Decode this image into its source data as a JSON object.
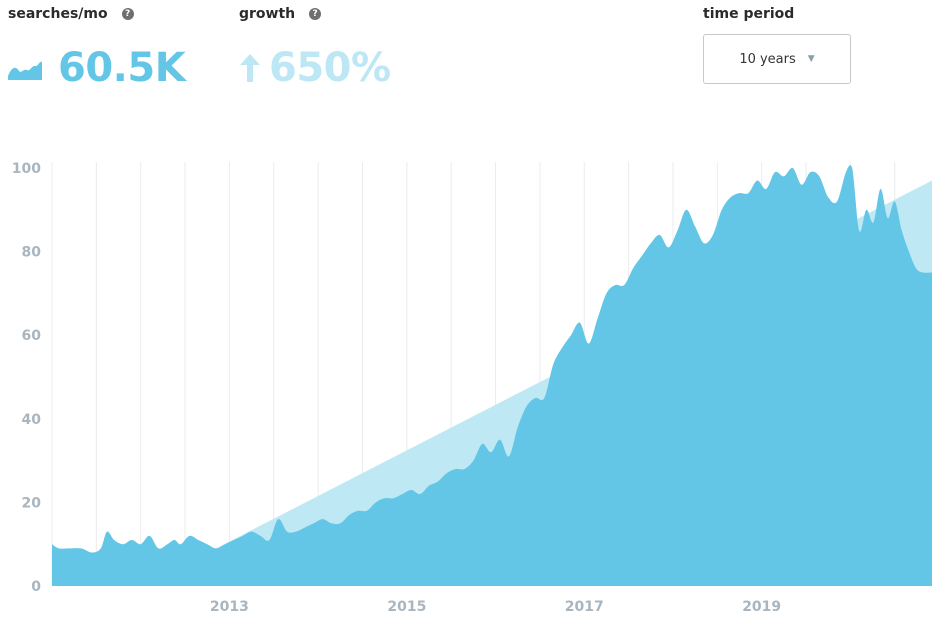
{
  "metrics": {
    "searches": {
      "label": "searches/mo",
      "value": "60.5K",
      "icon": "area-sparkline-icon",
      "color": "#63c6e6"
    },
    "growth": {
      "label": "growth",
      "value": "650%",
      "icon": "arrow-up-icon",
      "color": "#bde7f4"
    },
    "help_glyph": "?"
  },
  "time_period": {
    "label": "time period",
    "selected": "10 years",
    "caret": "▼"
  },
  "chart_data": {
    "type": "area",
    "x_start": 2011.0,
    "x_end": 2020.92,
    "ylim": [
      0,
      100
    ],
    "y_ticks": [
      "0",
      "20",
      "40",
      "60",
      "80",
      "100"
    ],
    "x_ticks": [
      {
        "label": "2013",
        "x": 2013.0
      },
      {
        "label": "2015",
        "x": 2015.0
      },
      {
        "label": "2017",
        "x": 2017.0
      },
      {
        "label": "2019",
        "x": 2019.0
      }
    ],
    "colors": {
      "volume": "#63c6e6",
      "trend": "#bfe8f5",
      "grid": "#ececec"
    },
    "trend": {
      "x": [
        2012.85,
        2020.92
      ],
      "y": [
        9,
        97
      ]
    },
    "series": [
      {
        "x": [
          2011.0,
          2011.08,
          2011.2,
          2011.33,
          2011.45,
          2011.55,
          2011.62,
          2011.7,
          2011.8,
          2011.9,
          2012.0,
          2012.1,
          2012.2,
          2012.3,
          2012.38,
          2012.45,
          2012.55,
          2012.65,
          2012.75,
          2012.85,
          2012.95,
          2013.05,
          2013.15,
          2013.25,
          2013.35,
          2013.45,
          2013.55,
          2013.65,
          2013.75,
          2013.85,
          2013.95,
          2014.05,
          2014.15,
          2014.25,
          2014.35,
          2014.45,
          2014.55,
          2014.65,
          2014.75,
          2014.85,
          2014.95,
          2015.05,
          2015.15,
          2015.25,
          2015.35,
          2015.45,
          2015.55,
          2015.65,
          2015.75,
          2015.85,
          2015.95,
          2016.05,
          2016.15,
          2016.25,
          2016.35,
          2016.45,
          2016.55,
          2016.65,
          2016.75,
          2016.85,
          2016.95,
          2017.05,
          2017.15,
          2017.25,
          2017.35,
          2017.45,
          2017.55,
          2017.65,
          2017.75,
          2017.85,
          2017.95,
          2018.05,
          2018.15,
          2018.25,
          2018.35,
          2018.45,
          2018.55,
          2018.65,
          2018.75,
          2018.85,
          2018.95,
          2019.05,
          2019.15,
          2019.25,
          2019.35,
          2019.45,
          2019.55,
          2019.65,
          2019.75,
          2019.85,
          2019.95,
          2020.02,
          2020.1,
          2020.18,
          2020.26,
          2020.34,
          2020.42,
          2020.5,
          2020.58,
          2020.66,
          2020.74,
          2020.82,
          2020.92
        ],
        "y": [
          10,
          9,
          9,
          9,
          8,
          9,
          13,
          11,
          10,
          11,
          10,
          12,
          9,
          10,
          11,
          10,
          12,
          11,
          10,
          9,
          10,
          11,
          12,
          13,
          12,
          11,
          16,
          13,
          13,
          14,
          15,
          16,
          15,
          15,
          17,
          18,
          18,
          20,
          21,
          21,
          22,
          23,
          22,
          24,
          25,
          27,
          28,
          28,
          30,
          34,
          32,
          35,
          31,
          38,
          43,
          45,
          45,
          53,
          57,
          60,
          63,
          58,
          64,
          70,
          72,
          72,
          76,
          79,
          82,
          84,
          81,
          85,
          90,
          86,
          82,
          84,
          90,
          93,
          94,
          94,
          97,
          95,
          99,
          98,
          100,
          96,
          99,
          98,
          93,
          92,
          99,
          100,
          85,
          90,
          87,
          95,
          88,
          92,
          85,
          80,
          76,
          75,
          75
        ]
      }
    ]
  }
}
